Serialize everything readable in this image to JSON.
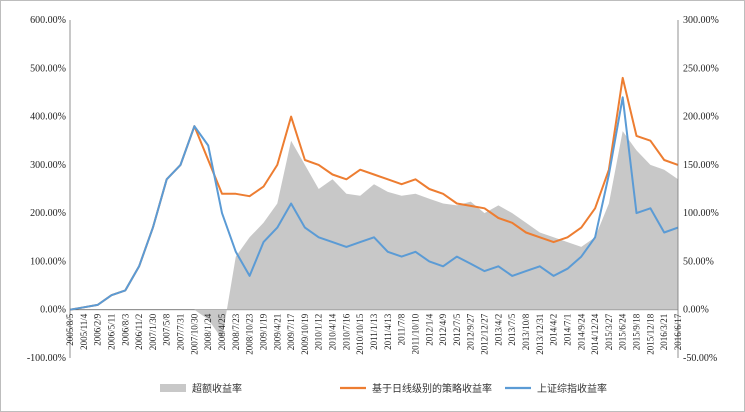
{
  "chart_data": {
    "type": "area+line",
    "title": "",
    "xlabel": "",
    "ylabel_left": "",
    "ylabel_right": "",
    "left_axis": {
      "min": -100,
      "max": 600,
      "ticks": [
        "-100.00%",
        "0.00%",
        "100.00%",
        "200.00%",
        "300.00%",
        "400.00%",
        "500.00%",
        "600.00%"
      ]
    },
    "right_axis": {
      "min": -50,
      "max": 300,
      "ticks": [
        "-50.00%",
        "0.00%",
        "50.00%",
        "100.00%",
        "150.00%",
        "200.00%",
        "250.00%",
        "300.00%"
      ]
    },
    "x_tick_labels": [
      "2005/8/5",
      "2005/11/4",
      "2006/2/9",
      "2006/5/11",
      "2006/8/3",
      "2006/11/2",
      "2007/1/30",
      "2007/5/8",
      "2007/7/31",
      "2007/10/30",
      "2008/1/24",
      "2008/4/25",
      "2008/7/23",
      "2008/10/23",
      "2009/1/19",
      "2009/4/21",
      "2009/7/17",
      "2009/10/19",
      "2010/1/12",
      "2010/4/14",
      "2010/7/16",
      "2010/10/15",
      "2011/1/13",
      "2011/4/13",
      "2011/7/8",
      "2011/10/10",
      "2012/1/4",
      "2012/4/9",
      "2012/7/5",
      "2012/9/27",
      "2012/12/27",
      "2013/4/2",
      "2013/7/5",
      "2013/10/8",
      "2013/12/31",
      "2014/4/2",
      "2014/7/1",
      "2014/9/24",
      "2014/12/24",
      "2015/3/27",
      "2015/6/24",
      "2015/9/18",
      "2015/12/18",
      "2016/3/21",
      "2016/6/17"
    ],
    "series": [
      {
        "name": "超额收益率",
        "kind": "area",
        "axis": "right",
        "color": "#c8c8c8",
        "values": [
          0,
          0,
          0,
          0,
          0,
          0,
          0,
          0,
          0,
          0,
          -10,
          -30,
          55,
          75,
          90,
          110,
          175,
          150,
          125,
          135,
          120,
          118,
          130,
          122,
          118,
          120,
          115,
          110,
          108,
          112,
          100,
          108,
          100,
          90,
          80,
          75,
          70,
          65,
          75,
          110,
          185,
          165,
          150,
          145,
          135
        ]
      },
      {
        "name": "基于日线级别的策略收益率",
        "kind": "line",
        "axis": "left",
        "color": "#ed7d31",
        "values": [
          0,
          5,
          10,
          30,
          40,
          90,
          170,
          270,
          300,
          380,
          310,
          240,
          240,
          235,
          255,
          300,
          400,
          310,
          300,
          280,
          270,
          290,
          280,
          270,
          260,
          270,
          250,
          240,
          220,
          215,
          210,
          190,
          180,
          160,
          150,
          140,
          150,
          170,
          210,
          290,
          480,
          360,
          350,
          310,
          300
        ]
      },
      {
        "name": "上证综指收益率",
        "kind": "line",
        "axis": "left",
        "color": "#5b9bd5",
        "values": [
          0,
          5,
          10,
          30,
          40,
          90,
          170,
          270,
          300,
          380,
          340,
          200,
          120,
          70,
          140,
          170,
          220,
          170,
          150,
          140,
          130,
          140,
          150,
          120,
          110,
          120,
          100,
          90,
          110,
          95,
          80,
          90,
          70,
          80,
          90,
          70,
          85,
          110,
          150,
          280,
          440,
          200,
          210,
          160,
          170
        ]
      }
    ],
    "legend_position": "bottom"
  }
}
